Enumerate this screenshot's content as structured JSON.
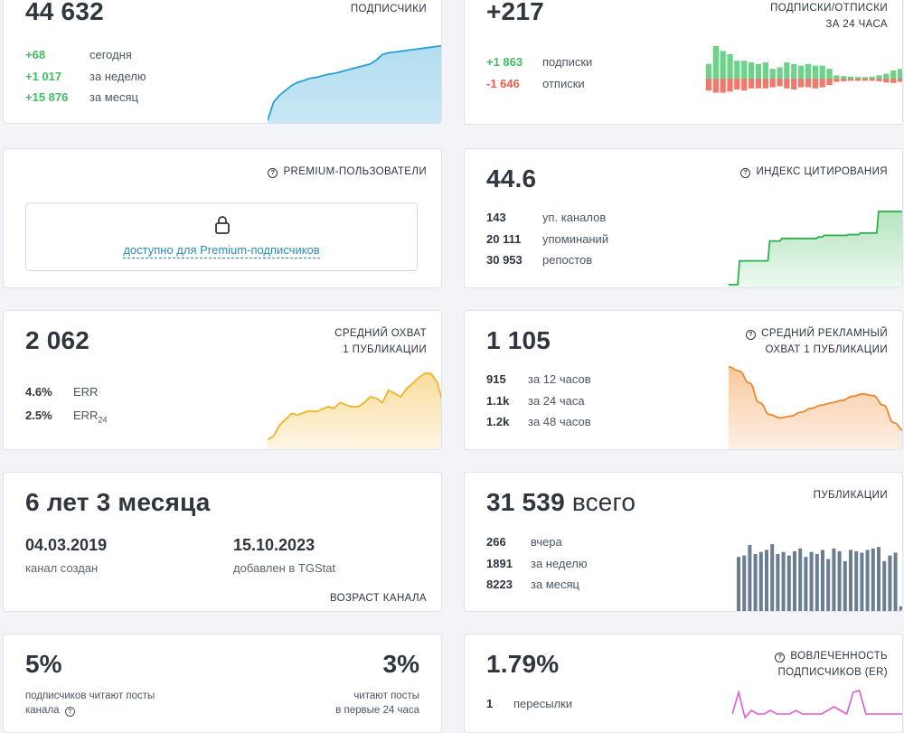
{
  "subscribers": {
    "value": "44 632",
    "label": "ПОДПИСЧИКИ",
    "stats": [
      {
        "value": "+68",
        "text": "сегодня"
      },
      {
        "value": "+1 017",
        "text": "за неделю"
      },
      {
        "value": "+15 876",
        "text": "за месяц"
      }
    ],
    "chart_data": {
      "type": "area",
      "values": [
        0.02,
        0.25,
        0.34,
        0.4,
        0.46,
        0.5,
        0.52,
        0.55,
        0.56,
        0.58,
        0.6,
        0.61,
        0.63,
        0.65,
        0.67,
        0.69,
        0.71,
        0.73,
        0.78,
        0.85,
        0.87,
        0.88,
        0.89,
        0.9,
        0.91,
        0.92,
        0.93,
        0.94,
        0.95,
        0.96
      ],
      "color": "#25a0d6"
    }
  },
  "sub_unsub": {
    "value": "+217",
    "label1": "ПОДПИСКИ/ОТПИСКИ",
    "label2": "ЗА 24 ЧАСА",
    "stats": [
      {
        "value": "+1 863",
        "text": "подписки"
      },
      {
        "value": "-1 646",
        "text": "отписки"
      }
    ],
    "chart_data": {
      "type": "bar",
      "positive": [
        0.45,
        1.0,
        0.85,
        0.75,
        0.55,
        0.55,
        0.5,
        0.45,
        0.5,
        0.3,
        0.35,
        0.5,
        0.45,
        0.4,
        0.45,
        0.4,
        0.4,
        0.3,
        0.1,
        0.08,
        0.06,
        0.05,
        0.05,
        0.06,
        0.1,
        0.15,
        0.25,
        0.3
      ],
      "negative": [
        0.55,
        0.65,
        0.65,
        0.6,
        0.5,
        0.55,
        0.45,
        0.45,
        0.45,
        0.4,
        0.35,
        0.45,
        0.5,
        0.4,
        0.4,
        0.45,
        0.4,
        0.3,
        0.15,
        0.12,
        0.1,
        0.1,
        0.1,
        0.1,
        0.12,
        0.18,
        0.2,
        0.15
      ],
      "pos_color": "#6ed38a",
      "neg_color": "#ef7a6c"
    }
  },
  "premium": {
    "label": "PREMIUM-ПОЛЬЗОВАТЕЛИ",
    "link": "доступно для Premium-подписчиков",
    "lock_icon": "lock-icon"
  },
  "citation": {
    "value": "44.6",
    "label": "ИНДЕКС ЦИТИРОВАНИЯ",
    "stats": [
      {
        "value": "143",
        "text": "уп. каналов"
      },
      {
        "value": "20 111",
        "text": "упоминаний"
      },
      {
        "value": "30 953",
        "text": "репостов"
      }
    ],
    "chart_data": {
      "type": "area",
      "values": [
        0.0,
        0.0,
        0.3,
        0.3,
        0.3,
        0.3,
        0.3,
        0.55,
        0.55,
        0.58,
        0.58,
        0.58,
        0.58,
        0.58,
        0.58,
        0.6,
        0.62,
        0.62,
        0.62,
        0.62,
        0.63,
        0.63,
        0.65,
        0.65,
        0.65,
        0.92,
        0.92,
        0.92,
        0.92,
        0.92
      ],
      "color": "#2cb34a"
    }
  },
  "reach": {
    "value": "2 062",
    "label1": "СРЕДНИЙ ОХВАТ",
    "label2": "1 ПУБЛИКАЦИИ",
    "stats": [
      {
        "value": "4.6%",
        "text": "ERR"
      },
      {
        "value": "2.5%",
        "text": "ERR",
        "sub": "24"
      }
    ],
    "chart_data": {
      "type": "area",
      "values": [
        0.1,
        0.15,
        0.28,
        0.35,
        0.42,
        0.4,
        0.43,
        0.45,
        0.44,
        0.47,
        0.5,
        0.48,
        0.55,
        0.52,
        0.5,
        0.5,
        0.55,
        0.62,
        0.6,
        0.55,
        0.7,
        0.66,
        0.62,
        0.72,
        0.78,
        0.85,
        0.9,
        0.9,
        0.8,
        0.55
      ],
      "color": "#f2b325"
    }
  },
  "ad_reach": {
    "value": "1 105",
    "label1": "СРЕДНИЙ РЕКЛАМНЫЙ",
    "label2": "ОХВАТ 1 ПУБЛИКАЦИИ",
    "stats": [
      {
        "value": "915",
        "text": "за 12 часов"
      },
      {
        "value": "1.1k",
        "text": "за 24 часа"
      },
      {
        "value": "1.2k",
        "text": "за 48 часов"
      }
    ],
    "chart_data": {
      "type": "area",
      "values": [
        1.0,
        0.95,
        0.8,
        0.55,
        0.4,
        0.36,
        0.38,
        0.43,
        0.48,
        0.52,
        0.55,
        0.58,
        0.63,
        0.66,
        0.64,
        0.52,
        0.3,
        0.2
      ],
      "color": "#f0862a"
    }
  },
  "age": {
    "value": "6 лет 3 месяца",
    "label": "ВОЗРАСТ КАНАЛА",
    "created_date": "04.03.2019",
    "created_text": "канал создан",
    "added_date": "15.10.2023",
    "added_text": "добавлен в TGStat"
  },
  "publications": {
    "value": "31 539",
    "suffix": "всего",
    "label": "ПУБЛИКАЦИИ",
    "stats": [
      {
        "value": "266",
        "text": "вчера"
      },
      {
        "value": "1891",
        "text": "за неделю"
      },
      {
        "value": "8223",
        "text": "за месяц"
      }
    ],
    "chart_data": {
      "type": "bar",
      "values": [
        0.78,
        0.8,
        0.95,
        0.82,
        0.85,
        0.88,
        0.96,
        0.82,
        0.85,
        0.8,
        0.86,
        0.9,
        0.78,
        0.85,
        0.82,
        0.88,
        0.75,
        0.9,
        0.86,
        0.72,
        0.88,
        0.86,
        0.84,
        0.88,
        0.9,
        0.92,
        0.72,
        0.8,
        0.84,
        0.08
      ],
      "color": "#6b7d90"
    }
  },
  "read_share": {
    "left_value": "5%",
    "left_text1": "подписчиков читают посты",
    "left_text2": "канала",
    "right_value": "3%",
    "right_text1": "читают посты",
    "right_text2": "в первые 24 часа"
  },
  "engagement": {
    "value": "1.79%",
    "label1": "ВОВЛЕЧЕННОСТЬ",
    "label2": "ПОДПИСЧИКОВ (ER)",
    "stats": [
      {
        "value": "1",
        "text": "пересылки"
      }
    ],
    "chart_data": {
      "type": "line",
      "values": [
        0.3,
        0.9,
        0.2,
        0.4,
        0.3,
        0.3,
        0.4,
        0.3,
        0.3,
        0.3,
        0.4,
        0.3,
        0.3,
        0.3,
        0.3,
        0.4,
        0.5,
        0.4,
        0.3,
        0.9,
        0.95,
        0.3,
        0.3,
        0.3,
        0.3,
        0.3,
        0.3,
        0.3
      ],
      "color": "#e05ad6"
    }
  }
}
